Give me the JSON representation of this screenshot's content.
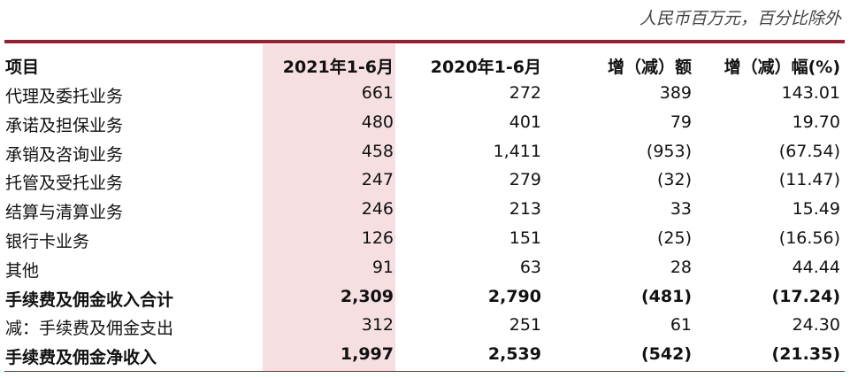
{
  "unit_note": "人民币百万元，百分比除外",
  "table": {
    "header": [
      "项目",
      "2021年1-6月",
      "2020年1-6月",
      "增（减）额",
      "增（减）幅(%)"
    ],
    "rows": [
      [
        "代理及委托业务",
        "661",
        "272",
        "389",
        "143.01"
      ],
      [
        "承诺及担保业务",
        "480",
        "401",
        "79",
        "19.70"
      ],
      [
        "承销及咨询业务",
        "458",
        "1,411",
        "(953)",
        "(67.54)"
      ],
      [
        "托管及受托业务",
        "247",
        "279",
        "(32)",
        "(11.47)"
      ],
      [
        "结算与清算业务",
        "246",
        "213",
        "33",
        "15.49"
      ],
      [
        "银行卡业务",
        "126",
        "151",
        "(25)",
        "(16.56)"
      ],
      [
        "其他",
        "91",
        "63",
        "28",
        "44.44"
      ],
      [
        "手续费及佣金收入合计",
        "2,309",
        "2,790",
        "(481)",
        "(17.24)"
      ],
      [
        "减：手续费及佣金支出",
        "312",
        "251",
        "61",
        "24.30"
      ],
      [
        "手续费及佣金净收入",
        "1,997",
        "2,539",
        "(542)",
        "(21.35)"
      ]
    ]
  }
}
